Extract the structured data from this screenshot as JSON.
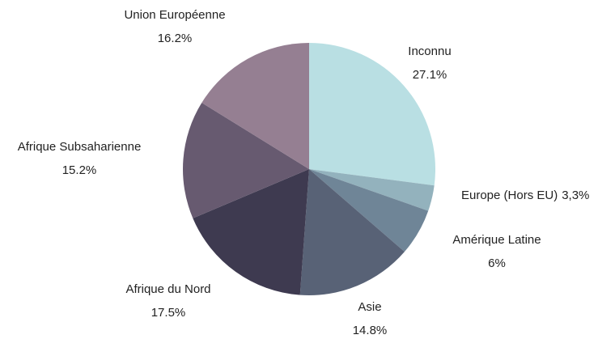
{
  "chart_data": {
    "type": "pie",
    "categories": [
      "Inconnu",
      "Europe (Hors EU)",
      "Amérique Latine",
      "Asie",
      "Afrique du Nord",
      "Afrique Subsaharienne",
      "Union Européenne"
    ],
    "values": [
      27.1,
      3.3,
      6,
      14.8,
      17.5,
      15.2,
      16.2
    ],
    "value_labels": [
      "27.1%",
      "3,3%",
      "6%",
      "14.8%",
      "17.5%",
      "15.2%",
      "16.2%"
    ],
    "colors": [
      "#b9dfe3",
      "#93b2bd",
      "#6f8597",
      "#586276",
      "#3e3a50",
      "#675a70",
      "#957f92"
    ]
  }
}
